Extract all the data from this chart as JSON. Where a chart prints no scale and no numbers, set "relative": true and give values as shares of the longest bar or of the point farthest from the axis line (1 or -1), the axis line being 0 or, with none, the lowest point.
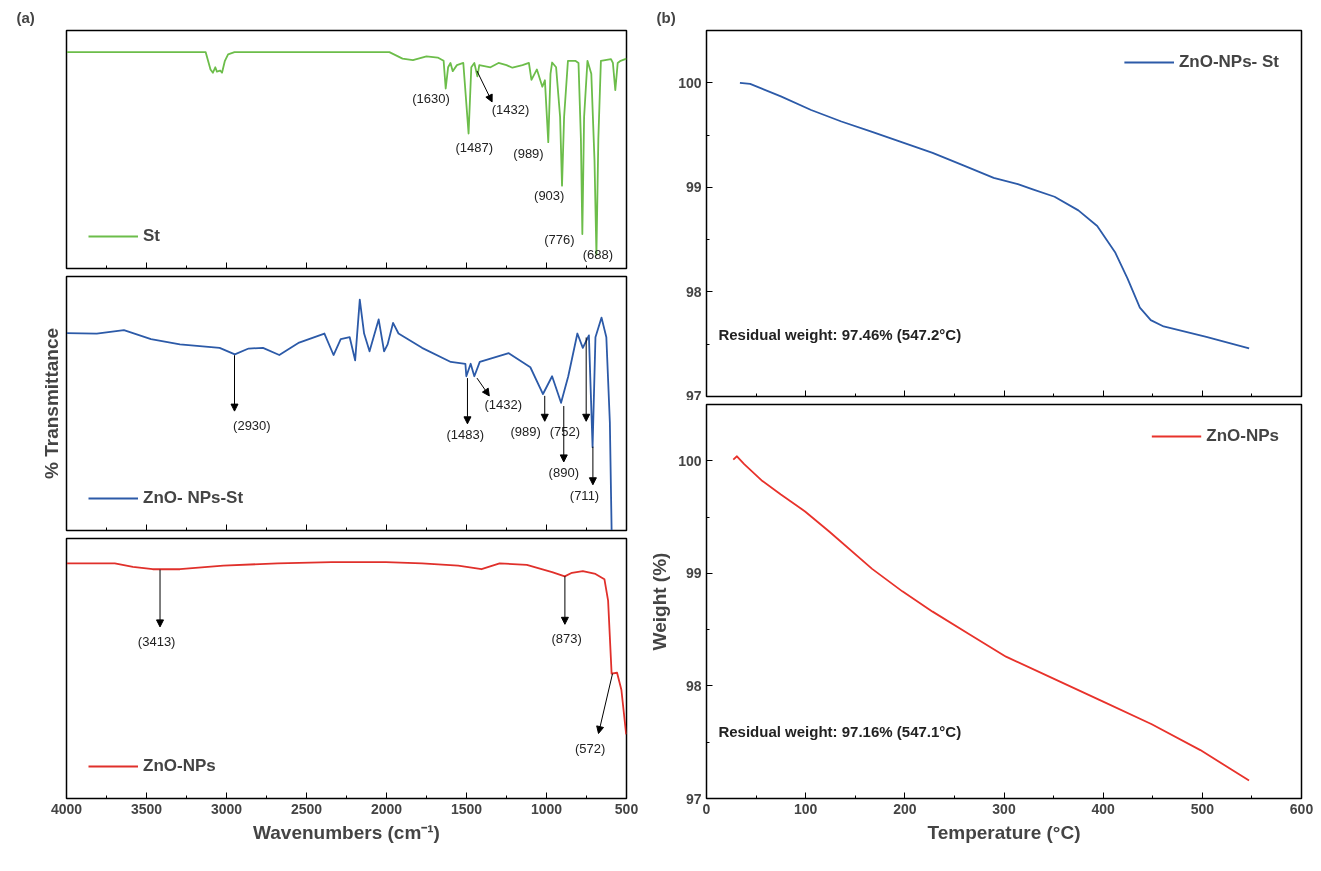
{
  "chart_data": [
    {
      "type": "line",
      "title": "(a)",
      "relative": true,
      "xlim": [
        4000,
        500
      ],
      "xticks": [
        4000,
        3500,
        3000,
        2500,
        2000,
        1500,
        1000,
        500
      ],
      "tick_labels": false,
      "legend": "bottom left",
      "grid": false,
      "x": [
        4000,
        3600,
        3200,
        3130,
        3100,
        3085,
        3070,
        3060,
        3040,
        3028,
        3010,
        2990,
        2950,
        2500,
        2000,
        1982,
        1900,
        1835,
        1750,
        1680,
        1643,
        1630,
        1615,
        1600,
        1586,
        1560,
        1520,
        1487,
        1470,
        1451,
        1432,
        1420,
        1350,
        1300,
        1250,
        1213,
        1150,
        1110,
        1094,
        1060,
        1026,
        1010,
        989,
        975,
        965,
        940,
        915,
        903,
        890,
        866,
        820,
        800,
        785,
        776,
        765,
        744,
        720,
        700,
        688,
        676,
        660,
        597,
        585,
        570,
        555,
        537,
        500
      ],
      "series": [
        {
          "name": "St",
          "color": "#6cbd4a",
          "values": [
            1.0,
            1.0,
            1.0,
            1.0,
            0.92,
            0.905,
            0.93,
            0.91,
            0.915,
            0.905,
            0.96,
            0.99,
            1.0,
            1.0,
            1.0,
            1.0,
            0.97,
            0.963,
            0.98,
            0.975,
            0.96,
            0.832,
            0.93,
            0.95,
            0.912,
            0.94,
            0.95,
            0.624,
            0.93,
            0.95,
            0.888,
            0.94,
            0.93,
            0.95,
            0.94,
            0.928,
            0.94,
            0.95,
            0.872,
            0.92,
            0.84,
            0.87,
            0.584,
            0.9,
            0.952,
            0.93,
            0.7,
            0.383,
            0.7,
            0.96,
            0.96,
            0.95,
            0.6,
            0.159,
            0.7,
            0.96,
            0.9,
            0.5,
            0.063,
            0.6,
            0.96,
            0.968,
            0.95,
            0.824,
            0.95,
            0.96,
            0.97
          ]
        }
      ],
      "annotations": [
        "(1630)",
        "(1432)",
        "(1487)",
        "(989)",
        "(903)",
        "(776)",
        "(688)"
      ]
    },
    {
      "type": "line",
      "ylabel": "% Transmittance",
      "relative": true,
      "xlim": [
        4000,
        500
      ],
      "xticks": [
        4000,
        3500,
        3000,
        2500,
        2000,
        1500,
        1000,
        500
      ],
      "tick_labels": false,
      "legend": "bottom left",
      "grid": false,
      "x": [
        4000,
        3811,
        3641,
        3472,
        3291,
        3043,
        2948,
        2862,
        2772,
        2670,
        2546,
        2388,
        2331,
        2286,
        2230,
        2196,
        2167,
        2140,
        2106,
        2049,
        2015,
        1993,
        1959,
        1925,
        1778,
        1598,
        1507,
        1501,
        1474,
        1451,
        1417,
        1236,
        1101,
        1022,
        965,
        909,
        864,
        807,
        773,
        735,
        712,
        694,
        656,
        626,
        604,
        593
      ],
      "series": [
        {
          "name": "ZnO- NPs-St",
          "color": "#2c5aa8",
          "values": [
            0.855,
            0.853,
            0.868,
            0.829,
            0.806,
            0.791,
            0.763,
            0.788,
            0.791,
            0.76,
            0.814,
            0.853,
            0.76,
            0.829,
            0.837,
            0.737,
            1.0,
            0.853,
            0.776,
            0.914,
            0.776,
            0.806,
            0.899,
            0.853,
            0.791,
            0.73,
            0.722,
            0.668,
            0.722,
            0.668,
            0.73,
            0.768,
            0.707,
            0.591,
            0.668,
            0.553,
            0.668,
            0.853,
            0.791,
            0.845,
            0.361,
            0.837,
            0.922,
            0.837,
            0.468,
            0.0
          ]
        }
      ],
      "annotations": [
        "(2930)",
        "(1432)",
        "(1483)",
        "(989)",
        "(752)",
        "(890)",
        "(711)"
      ]
    },
    {
      "type": "line",
      "xlabel": "Wavenumbers (cm⁻¹)",
      "relative": true,
      "xlim": [
        4000,
        500
      ],
      "xticks": [
        4000,
        3500,
        3000,
        2500,
        2000,
        1500,
        1000,
        500
      ],
      "tick_labels": "x",
      "legend": "bottom left",
      "grid": false,
      "x": [
        4000,
        3698,
        3585,
        3461,
        3291,
        3020,
        2681,
        2343,
        2004,
        1778,
        1552,
        1406,
        1293,
        1123,
        965,
        886,
        841,
        773,
        694,
        638,
        615,
        593,
        559,
        532,
        502
      ],
      "series": [
        {
          "name": "ZnO-NPs",
          "color": "#e0302b",
          "values": [
            0.995,
            0.995,
            0.98,
            0.97,
            0.97,
            0.985,
            0.995,
            1.0,
            1.0,
            0.995,
            0.985,
            0.97,
            0.995,
            0.988,
            0.958,
            0.94,
            0.955,
            0.962,
            0.95,
            0.928,
            0.837,
            0.528,
            0.532,
            0.46,
            0.271
          ]
        }
      ],
      "annotations": [
        "(3413)",
        "(873)",
        "(572)"
      ]
    },
    {
      "type": "line",
      "title": "(b)",
      "xlim": [
        0,
        600
      ],
      "xticks": [
        0,
        100,
        200,
        300,
        400,
        500,
        600
      ],
      "ylim": [
        97,
        100.5
      ],
      "yticks": [
        97,
        98,
        99,
        100
      ],
      "tick_labels": "y",
      "legend": "top right",
      "grid": false,
      "x": [
        33.7,
        44,
        75,
        105.5,
        136,
        167,
        197.5,
        228,
        259,
        289.6,
        314,
        329,
        351,
        375,
        394,
        412,
        424.5,
        437,
        448,
        461,
        504,
        547.2
      ],
      "series": [
        {
          "name": "ZnO-NPs- St",
          "color": "#2c5aa8",
          "values": [
            100.0,
            99.99,
            99.87,
            99.74,
            99.63,
            99.53,
            99.43,
            99.33,
            99.21,
            99.09,
            99.03,
            98.98,
            98.91,
            98.78,
            98.63,
            98.38,
            98.13,
            97.85,
            97.73,
            97.67,
            97.57,
            97.46
          ]
        }
      ],
      "annotations": [
        "Residual weight: 97.46% (547.2°C)"
      ]
    },
    {
      "type": "line",
      "xlabel": "Temperature (°C)",
      "ylabel": "Weight (%)",
      "xlim": [
        0,
        600
      ],
      "xticks": [
        0,
        100,
        200,
        300,
        400,
        500,
        600
      ],
      "ylim": [
        97,
        100.5
      ],
      "yticks": [
        97,
        98,
        99,
        100
      ],
      "legend": "top right",
      "grid": false,
      "x": [
        27,
        30.7,
        38,
        56.4,
        75,
        99.4,
        124,
        167,
        197.5,
        228,
        265,
        302,
        351,
        400,
        449,
        498,
        547.1
      ],
      "series": [
        {
          "name": "ZnO-NPs",
          "color": "#e8322b",
          "values": [
            100.01,
            100.04,
            99.97,
            99.82,
            99.7,
            99.55,
            99.37,
            99.04,
            98.84,
            98.66,
            98.46,
            98.26,
            98.06,
            97.86,
            97.66,
            97.43,
            97.16
          ]
        }
      ],
      "annotations": [
        "Residual weight: 97.16% (547.1°C)"
      ]
    }
  ]
}
